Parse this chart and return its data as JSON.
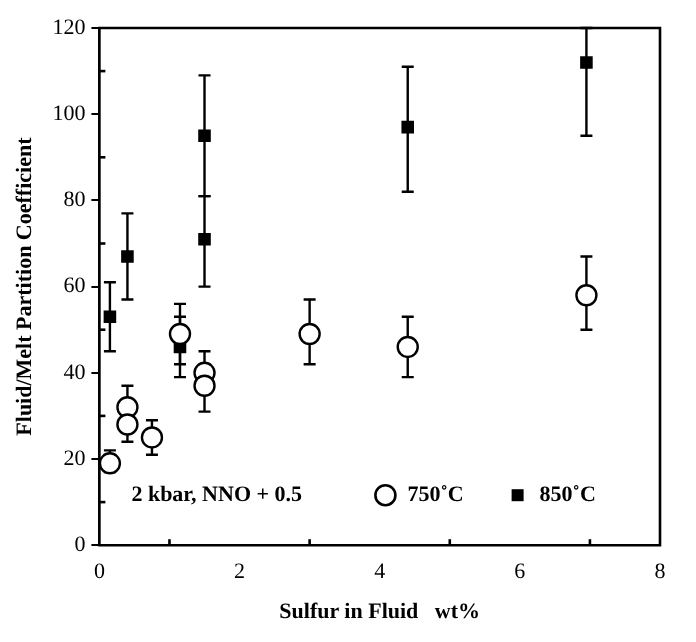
{
  "chart_data": {
    "type": "scatter",
    "xlabel": "Sulfur in Fluid   wt%",
    "ylabel": "Fluid/Melt Partition Coefficient",
    "xlim": [
      0,
      8
    ],
    "xticks": [
      0,
      2,
      4,
      6,
      8
    ],
    "ylim": [
      0,
      120
    ],
    "yticks": [
      0,
      20,
      40,
      60,
      80,
      100,
      120
    ],
    "grid": false,
    "legend": "bottom right",
    "annotations": [
      "2 kbar, NNO + 0.5"
    ],
    "series": [
      {
        "name": "750˚C",
        "color": "#000000",
        "marker": "circle",
        "x": [
          0.15,
          0.4,
          0.4,
          0.75,
          1.15,
          1.5,
          1.5,
          3.0,
          4.4,
          6.95
        ],
        "values": [
          19,
          32,
          28,
          25,
          49,
          40,
          37,
          49,
          46,
          58
        ],
        "errors": [
          [
            17,
            22
          ],
          [
            30,
            37
          ],
          [
            24,
            32
          ],
          [
            21,
            29
          ],
          [
            42,
            56
          ],
          [
            36,
            45
          ],
          [
            31,
            41
          ],
          [
            42,
            57
          ],
          [
            39,
            53
          ],
          [
            50,
            67
          ]
        ]
      },
      {
        "name": "850˚C",
        "color": "#000000",
        "marker": "square",
        "x": [
          0.15,
          0.4,
          1.15,
          1.5,
          1.5,
          4.4,
          6.95
        ],
        "values": [
          53,
          67,
          46,
          95,
          71,
          97,
          112
        ],
        "errors": [
          [
            45,
            61
          ],
          [
            57,
            77
          ],
          [
            39,
            53
          ],
          [
            81,
            109
          ],
          [
            60,
            81
          ],
          [
            82,
            111
          ],
          [
            95,
            120
          ]
        ]
      }
    ]
  }
}
